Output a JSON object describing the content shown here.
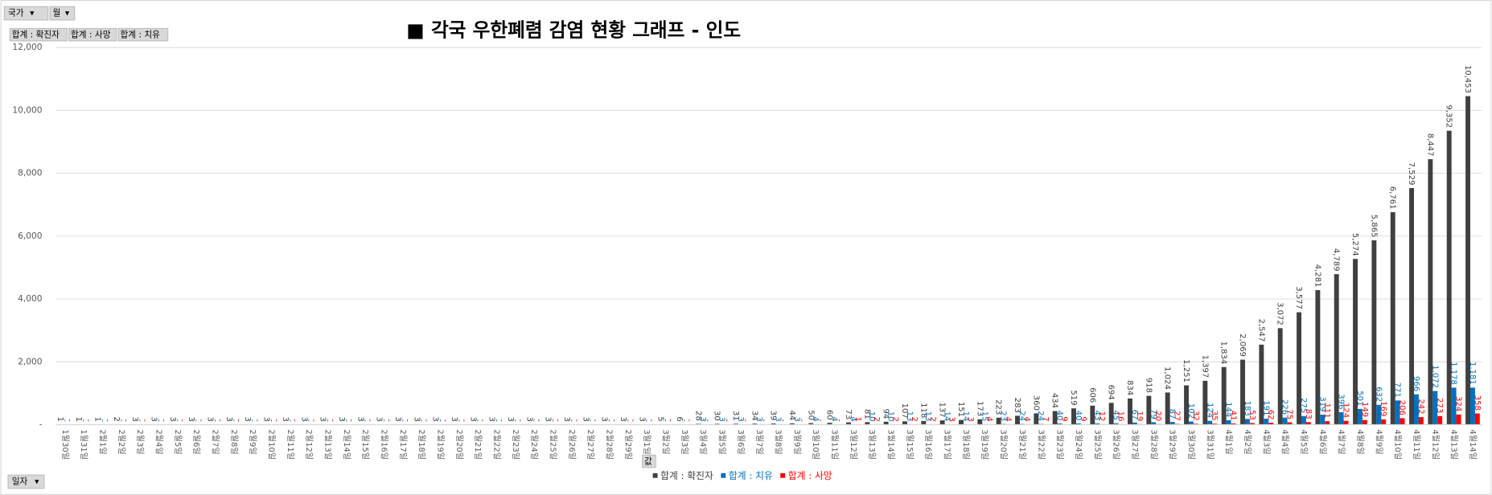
{
  "controls": {
    "filters": [
      "국가",
      "월"
    ],
    "value_fields": [
      "합계 : 확진자",
      "합계 : 사망",
      "합계 : 치유"
    ],
    "axis_field": "일자",
    "values_button": "값"
  },
  "chart_data": {
    "type": "bar",
    "title": "■ 각국 우한폐렴 감염 현황 그래프 - 인도",
    "categories": [
      "1월30일",
      "1월31일",
      "2월1일",
      "2월2일",
      "2월3일",
      "2월4일",
      "2월5일",
      "2월6일",
      "2월7일",
      "2월8일",
      "2월9일",
      "2월10일",
      "2월11일",
      "2월12일",
      "2월13일",
      "2월14일",
      "2월15일",
      "2월16일",
      "2월17일",
      "2월18일",
      "2월19일",
      "2월20일",
      "2월21일",
      "2월22일",
      "2월23일",
      "2월24일",
      "2월25일",
      "2월26일",
      "2월27일",
      "2월28일",
      "2월29일",
      "3월1일",
      "3월2일",
      "3월3일",
      "3월4일",
      "3월5일",
      "3월6일",
      "3월7일",
      "3월8일",
      "3월9일",
      "3월10일",
      "3월11일",
      "3월12일",
      "3월13일",
      "3월14일",
      "3월15일",
      "3월16일",
      "3월17일",
      "3월18일",
      "3월19일",
      "3월20일",
      "3월21일",
      "3월22일",
      "3월23일",
      "3월24일",
      "3월25일",
      "3월26일",
      "3월27일",
      "3월28일",
      "3월29일",
      "3월30일",
      "3월31일",
      "4월1일",
      "4월2일",
      "4월3일",
      "4월4일",
      "4월5일",
      "4월6일",
      "4월7일",
      "4월8일",
      "4월9일",
      "4월10일",
      "4월11일",
      "4월12일",
      "4월13일",
      "4월14일"
    ],
    "series": [
      {
        "name": "합계 : 확진자",
        "color": "#404040",
        "label_color": "#404040",
        "values": [
          1,
          1,
          1,
          2,
          3,
          3,
          3,
          3,
          3,
          3,
          3,
          3,
          3,
          3,
          3,
          3,
          3,
          3,
          3,
          3,
          3,
          3,
          3,
          3,
          3,
          3,
          3,
          3,
          3,
          3,
          3,
          3,
          5,
          6,
          28,
          30,
          31,
          34,
          39,
          44,
          50,
          60,
          73,
          81,
          94,
          107,
          118,
          137,
          151,
          173,
          223,
          283,
          360,
          434,
          519,
          606,
          694,
          834,
          918,
          1024,
          1251,
          1397,
          1834,
          2069,
          2547,
          3072,
          3577,
          4281,
          4789,
          5274,
          5865,
          6761,
          7529,
          8447,
          9352,
          10453
        ],
        "value_labels": [
          "1",
          "1",
          "1",
          "2",
          "3",
          "3",
          "3",
          "3",
          "3",
          "3",
          "3",
          "3",
          "3",
          "3",
          "3",
          "3",
          "3",
          "3",
          "3",
          "3",
          "3",
          "3",
          "3",
          "3",
          "3",
          "3",
          "3",
          "3",
          "3",
          "3",
          "3",
          "3",
          "5",
          "6",
          "28",
          "30",
          "31",
          "34",
          "39",
          "44",
          "50",
          "60",
          "73",
          "81",
          "94",
          "107",
          "118",
          "137",
          "151",
          "173",
          "223",
          "283",
          "360",
          "434",
          "519",
          "606",
          "694",
          "834",
          "918",
          "1,024",
          "1,251",
          "1,397",
          "1,834",
          "2,069",
          "2,547",
          "3,072",
          "3,577",
          "4,281",
          "4,789",
          "5,274",
          "5,865",
          "6,761",
          "7,529",
          "8,447",
          "9,352",
          "10,453"
        ]
      },
      {
        "name": "합계 : 치유",
        "color": "#0070c0",
        "label_color": "#0070c0",
        "values": [
          0,
          0,
          0,
          0,
          0,
          0,
          0,
          0,
          0,
          0,
          0,
          0,
          0,
          0,
          0,
          0,
          0,
          0,
          0,
          0,
          0,
          0,
          0,
          0,
          0,
          0,
          0,
          0,
          0,
          0,
          0,
          0,
          0,
          0,
          3,
          3,
          3,
          3,
          3,
          3,
          4,
          4,
          4,
          10,
          10,
          13,
          13,
          14,
          14,
          15,
          23,
          24,
          24,
          40,
          40,
          43,
          45,
          67,
          79,
          87,
          102,
          124,
          144,
          183,
          191,
          226,
          275,
          319,
          396,
          501,
          632,
          771,
          966,
          1072,
          1178,
          1181
        ],
        "value_labels": [
          "-",
          "-",
          "-",
          "-",
          "-",
          "-",
          "-",
          "-",
          "-",
          "-",
          "-",
          "-",
          "-",
          "-",
          "-",
          "-",
          "-",
          "-",
          "-",
          "-",
          "-",
          "-",
          "-",
          "-",
          "-",
          "-",
          "-",
          "-",
          "-",
          "-",
          "-",
          "-",
          "-",
          "-",
          "3",
          "3",
          "3",
          "3",
          "3",
          "3",
          "4",
          "4",
          "4",
          "10",
          "10",
          "13",
          "13",
          "14",
          "14",
          "15",
          "23",
          "24",
          "24",
          "40",
          "40",
          "43",
          "45",
          "67",
          "79",
          "87",
          "102",
          "124",
          "144",
          "183",
          "191",
          "226",
          "275",
          "319",
          "396",
          "501",
          "632",
          "771",
          "966",
          "1,072",
          "1,178",
          "1,181"
        ]
      },
      {
        "name": "합계 : 사망",
        "color": "#ff0000",
        "label_color": "#ff0000",
        "values": [
          0,
          0,
          0,
          0,
          0,
          0,
          0,
          0,
          0,
          0,
          0,
          0,
          0,
          0,
          0,
          0,
          0,
          0,
          0,
          0,
          0,
          0,
          0,
          0,
          0,
          0,
          0,
          0,
          0,
          0,
          0,
          0,
          0,
          0,
          0,
          0,
          0,
          0,
          0,
          0,
          0,
          0,
          1,
          2,
          2,
          2,
          2,
          3,
          3,
          4,
          4,
          4,
          7,
          9,
          9,
          12,
          16,
          19,
          20,
          27,
          32,
          35,
          41,
          53,
          62,
          75,
          83,
          111,
          124,
          149,
          169,
          206,
          242,
          273,
          324,
          358
        ],
        "value_labels": [
          "-",
          "-",
          "-",
          "-",
          "-",
          "-",
          "-",
          "-",
          "-",
          "-",
          "-",
          "-",
          "-",
          "-",
          "-",
          "-",
          "-",
          "-",
          "-",
          "-",
          "-",
          "-",
          "-",
          "-",
          "-",
          "-",
          "-",
          "-",
          "-",
          "-",
          "-",
          "-",
          "-",
          "-",
          "-",
          "-",
          "-",
          "-",
          "-",
          "-",
          "-",
          "-",
          "1",
          "2",
          "2",
          "2",
          "2",
          "3",
          "3",
          "4",
          "4",
          "4",
          "7",
          "9",
          "9",
          "12",
          "16",
          "19",
          "20",
          "27",
          "32",
          "35",
          "41",
          "53",
          "62",
          "75",
          "83",
          "111",
          "124",
          "149",
          "169",
          "206",
          "242",
          "273",
          "324",
          "358"
        ]
      }
    ],
    "ylim": [
      0,
      12000
    ],
    "yticks": [
      {
        "value": 0,
        "label": "-"
      },
      {
        "value": 2000,
        "label": "2,000"
      },
      {
        "value": 4000,
        "label": "4,000"
      },
      {
        "value": 6000,
        "label": "6,000"
      },
      {
        "value": 8000,
        "label": "8,000"
      },
      {
        "value": 10000,
        "label": "10,000"
      },
      {
        "value": 12000,
        "label": "12,000"
      }
    ],
    "grid": true,
    "legend": "bottom"
  }
}
